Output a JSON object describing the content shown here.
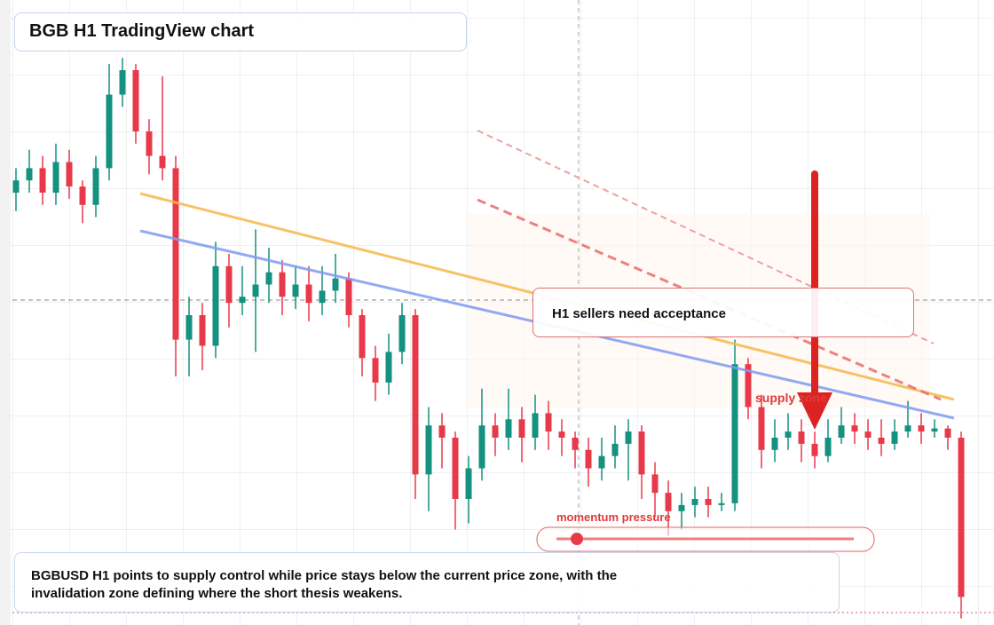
{
  "chart_data": {
    "type": "candlestick",
    "title": "BGB H1 TradingView chart",
    "annotations": [
      "H1 sellers need acceptance",
      "supply zone",
      "momentum pressure"
    ],
    "caption": "BGBUSD H1 points to supply control while price stays below the current price zone, with the invalidation zone defining where the short thesis weakens.",
    "up_color": "#14917f",
    "down_color": "#e8394a",
    "ylim": [
      0,
      100
    ],
    "open": [
      70,
      72,
      74,
      70,
      75,
      71,
      68,
      74,
      86,
      90,
      80,
      76,
      74,
      46,
      50,
      45,
      58,
      52,
      53,
      55,
      57,
      53,
      55,
      52,
      54,
      56,
      50,
      43,
      39,
      44,
      50,
      24,
      32,
      30,
      20,
      25,
      32,
      30,
      33,
      30,
      34,
      31,
      30,
      28,
      25,
      27,
      29,
      31,
      24,
      21,
      18,
      19,
      20,
      19,
      19.3,
      42,
      35,
      28,
      30,
      31,
      29,
      27,
      30,
      32,
      31,
      30,
      29,
      31,
      32,
      31,
      31.5,
      30
    ],
    "high": [
      74,
      77,
      76,
      78,
      77,
      72,
      76,
      91,
      92,
      91,
      82,
      89,
      76,
      53,
      52,
      62,
      60,
      58,
      64,
      61,
      59,
      58,
      58,
      58,
      60,
      57,
      51,
      45,
      47,
      52,
      51,
      35,
      34,
      31,
      27,
      38,
      34,
      38,
      35,
      37,
      36,
      33,
      31,
      30,
      30,
      32,
      33,
      32,
      26,
      23,
      21,
      22,
      22,
      21,
      46,
      43,
      37,
      33,
      34,
      33,
      31,
      33,
      35,
      34,
      33,
      33,
      33,
      36,
      34,
      33,
      32,
      31
    ],
    "low": [
      67,
      70,
      68,
      68,
      69,
      65,
      66,
      72,
      84,
      78,
      73,
      72,
      40,
      40,
      41,
      43,
      48,
      50,
      44,
      52,
      50,
      51,
      49,
      50,
      52,
      48,
      40,
      36,
      37,
      42,
      20,
      18,
      25,
      15,
      16,
      23,
      27,
      28,
      26,
      28,
      28,
      27,
      25,
      22,
      23,
      25,
      23,
      20,
      17,
      14,
      15,
      17,
      17,
      18,
      18,
      33,
      25,
      26,
      28,
      26,
      25,
      26,
      29,
      29,
      28,
      27,
      28,
      30,
      29,
      30,
      28,
      0.5
    ],
    "close": [
      72,
      74,
      70,
      75,
      71,
      68,
      74,
      86,
      90,
      80,
      76,
      74,
      46,
      50,
      45,
      58,
      52,
      53,
      55,
      57,
      53,
      55,
      52,
      54,
      56,
      50,
      43,
      39,
      44,
      50,
      24,
      32,
      30,
      20,
      25,
      32,
      30,
      33,
      30,
      34,
      31,
      30,
      28,
      25,
      27,
      29,
      31,
      24,
      21,
      18,
      19,
      20,
      19,
      19.3,
      42,
      35,
      28,
      30,
      31,
      29,
      27,
      30,
      32,
      31,
      30,
      29,
      31,
      32,
      31,
      31.5,
      30,
      4
    ]
  }
}
